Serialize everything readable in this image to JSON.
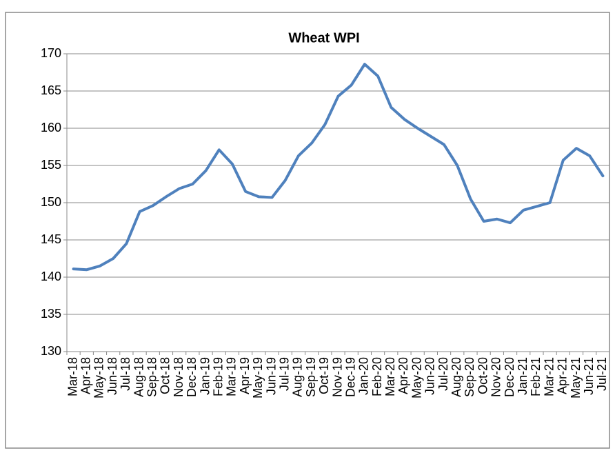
{
  "chart_data": {
    "type": "line",
    "title": "Wheat WPI",
    "categories": [
      "Mar-18",
      "Apr-18",
      "May-18",
      "Jun-18",
      "Jul-18",
      "Aug-18",
      "Sep-18",
      "Oct-18",
      "Nov-18",
      "Dec-18",
      "Jan-19",
      "Feb-19",
      "Mar-19",
      "Apr-19",
      "May-19",
      "Jun-19",
      "Jul-19",
      "Aug-19",
      "Sep-19",
      "Oct-19",
      "Nov-19",
      "Dec-19",
      "Jan-20",
      "Feb-20",
      "Mar-20",
      "Apr-20",
      "May-20",
      "Jun-20",
      "Jul-20",
      "Aug-20",
      "Sep-20",
      "Oct-20",
      "Nov-20",
      "Dec-20",
      "Jan-21",
      "Feb-21",
      "Mar-21",
      "Apr-21",
      "May-21",
      "Jun-21",
      "Jul-21"
    ],
    "series": [
      {
        "name": "Wheat WPI",
        "color": "#4f81bd",
        "values": [
          141.1,
          141.0,
          141.5,
          142.5,
          144.5,
          148.8,
          149.6,
          150.8,
          151.9,
          152.5,
          154.3,
          157.1,
          155.2,
          151.5,
          150.8,
          150.7,
          153.0,
          156.3,
          158.0,
          160.5,
          164.3,
          165.8,
          168.6,
          167.0,
          162.8,
          161.2,
          160.0,
          158.9,
          157.8,
          155.0,
          150.5,
          147.5,
          147.8,
          147.3,
          149.0,
          149.5,
          150.0,
          155.7,
          157.3,
          156.3,
          153.6
        ]
      }
    ],
    "ylim": [
      130,
      170
    ],
    "yticks": [
      130,
      135,
      140,
      145,
      150,
      155,
      160,
      165,
      170
    ],
    "grid": true
  }
}
